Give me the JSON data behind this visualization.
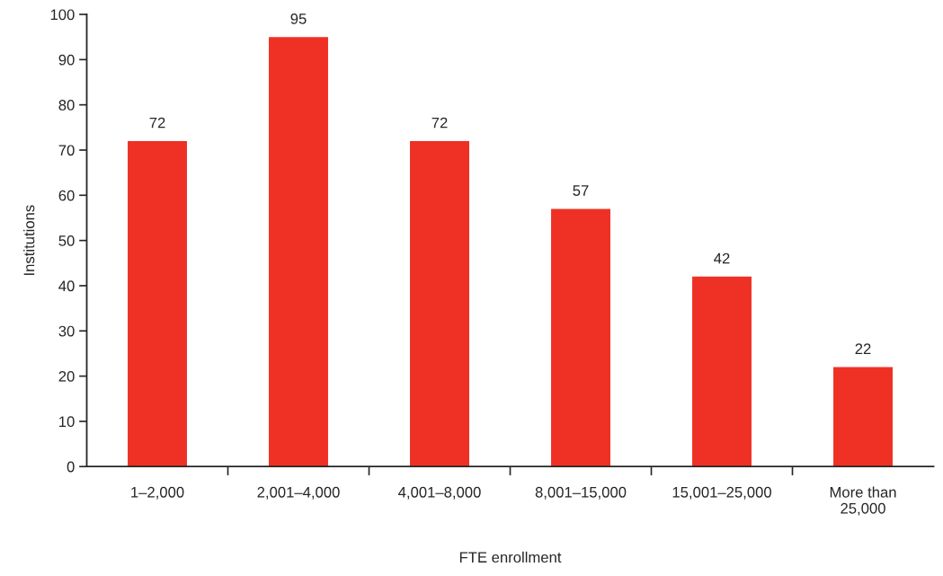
{
  "chart_data": {
    "type": "bar",
    "xlabel": "FTE enrollment",
    "ylabel": "Institutions",
    "categories": [
      "1–2,000",
      "2,001–4,000",
      "4,001–8,000",
      "8,001–15,000",
      "15,001–25,000",
      "More than\n25,000"
    ],
    "values": [
      72,
      95,
      72,
      57,
      42,
      22
    ],
    "color": "#ee3124",
    "ylim": [
      0,
      100
    ],
    "yticks": [
      0,
      10,
      20,
      30,
      40,
      50,
      60,
      70,
      80,
      90,
      100
    ],
    "grid": false,
    "legend": false,
    "data_labels": true
  }
}
